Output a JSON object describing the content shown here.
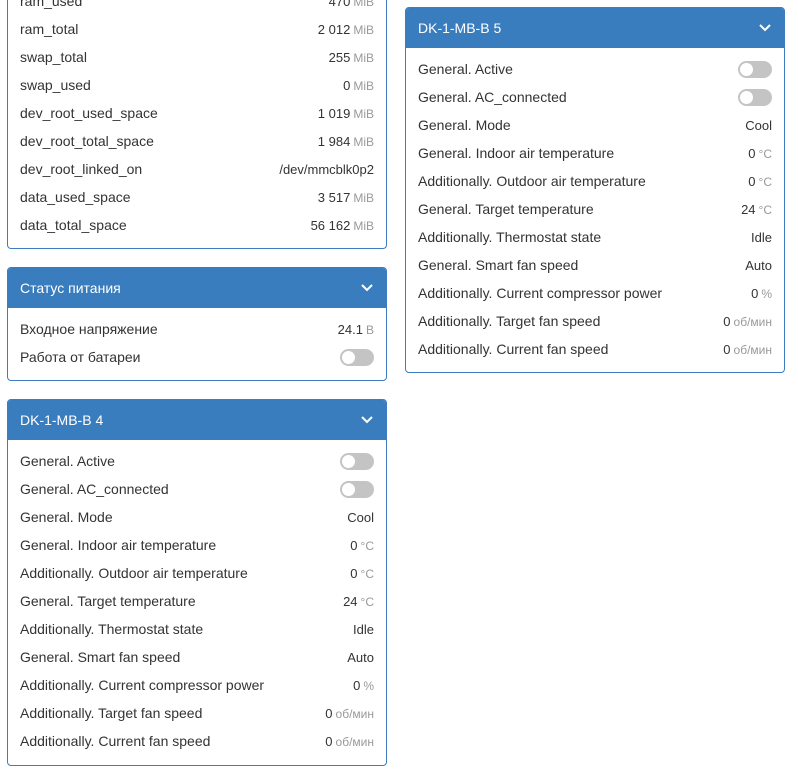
{
  "system": {
    "rows": [
      {
        "label": "ram_used",
        "value": "470",
        "unit": "MiB"
      },
      {
        "label": "ram_total",
        "value": "2 012",
        "unit": "MiB"
      },
      {
        "label": "swap_total",
        "value": "255",
        "unit": "MiB"
      },
      {
        "label": "swap_used",
        "value": "0",
        "unit": "MiB"
      },
      {
        "label": "dev_root_used_space",
        "value": "1 019",
        "unit": "MiB"
      },
      {
        "label": "dev_root_total_space",
        "value": "1 984",
        "unit": "MiB"
      },
      {
        "label": "dev_root_linked_on",
        "value": "/dev/mmcblk0p2",
        "unit": ""
      },
      {
        "label": "data_used_space",
        "value": "3 517",
        "unit": "MiB"
      },
      {
        "label": "data_total_space",
        "value": "56 162",
        "unit": "MiB"
      }
    ]
  },
  "power": {
    "title": "Статус питания",
    "rows": [
      {
        "label": "Входное напряжение",
        "value": "24.1",
        "unit": "В"
      },
      {
        "label": "Работа от батареи",
        "toggle": false
      }
    ]
  },
  "dk4": {
    "title": "DK-1-MB-B 4",
    "rows": [
      {
        "label": "General. Active",
        "toggle": false
      },
      {
        "label": "General. AC_connected",
        "toggle": false
      },
      {
        "label": "General. Mode",
        "value": "Cool",
        "unit": ""
      },
      {
        "label": "General. Indoor air temperature",
        "value": "0",
        "unit": "°C"
      },
      {
        "label": "Additionally. Outdoor air temperature",
        "value": "0",
        "unit": "°C"
      },
      {
        "label": "General. Target temperature",
        "value": "24",
        "unit": "°C"
      },
      {
        "label": "Additionally. Thermostat state",
        "value": "Idle",
        "unit": ""
      },
      {
        "label": "General. Smart fan speed",
        "value": "Auto",
        "unit": ""
      },
      {
        "label": "Additionally. Current compressor power",
        "value": "0",
        "unit": "%"
      },
      {
        "label": "Additionally. Target fan speed",
        "value": "0",
        "unit": "об/мин"
      },
      {
        "label": "Additionally. Current fan speed",
        "value": "0",
        "unit": "об/мин"
      }
    ]
  },
  "dk5": {
    "title": "DK-1-MB-B 5",
    "rows": [
      {
        "label": "General. Active",
        "toggle": false
      },
      {
        "label": "General. AC_connected",
        "toggle": false
      },
      {
        "label": "General. Mode",
        "value": "Cool",
        "unit": ""
      },
      {
        "label": "General. Indoor air temperature",
        "value": "0",
        "unit": "°C"
      },
      {
        "label": "Additionally. Outdoor air temperature",
        "value": "0",
        "unit": "°C"
      },
      {
        "label": "General. Target temperature",
        "value": "24",
        "unit": "°C"
      },
      {
        "label": "Additionally. Thermostat state",
        "value": "Idle",
        "unit": ""
      },
      {
        "label": "General. Smart fan speed",
        "value": "Auto",
        "unit": ""
      },
      {
        "label": "Additionally. Current compressor power",
        "value": "0",
        "unit": "%"
      },
      {
        "label": "Additionally. Target fan speed",
        "value": "0",
        "unit": "об/мин"
      },
      {
        "label": "Additionally. Current fan speed",
        "value": "0",
        "unit": "об/мин"
      }
    ]
  },
  "icons": {
    "collapse": "chevron-down-icon"
  },
  "colors": {
    "header_bg": "#3a7dbe",
    "toggle_off": "#c4c4c4",
    "unit_text": "#999999"
  }
}
